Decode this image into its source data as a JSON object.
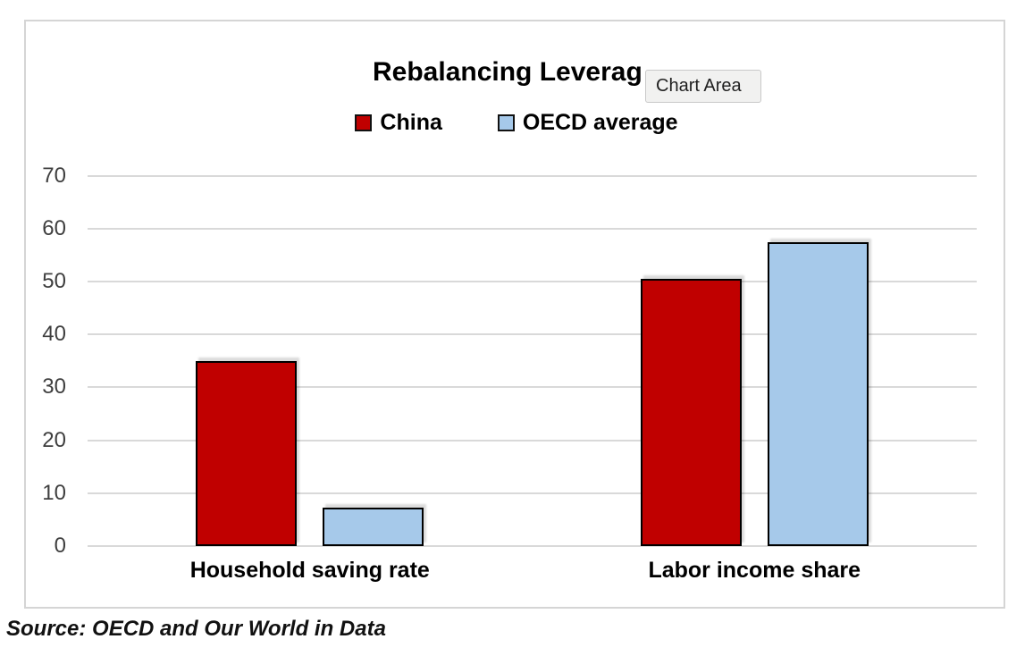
{
  "ui": {
    "tooltip": "Chart Area"
  },
  "source": "Source: OECD and Our World in Data",
  "chart_data": {
    "type": "bar",
    "title": "Rebalancing Leverag",
    "categories": [
      "Household saving rate",
      "Labor income share"
    ],
    "series": [
      {
        "name": "China",
        "color": "#C00000",
        "values": [
          35,
          50.5
        ]
      },
      {
        "name": "OECD average",
        "color": "#A6C9EA",
        "values": [
          7.2,
          57.5
        ]
      }
    ],
    "ylim": [
      0,
      70
    ],
    "yticks": [
      0,
      10,
      20,
      30,
      40,
      50,
      60,
      70
    ],
    "grid": true,
    "legend_position": "top",
    "bar_border_color": "#000000",
    "gridline_color": "#D9D9D9",
    "axis_label_color": "#3F3F3F"
  }
}
